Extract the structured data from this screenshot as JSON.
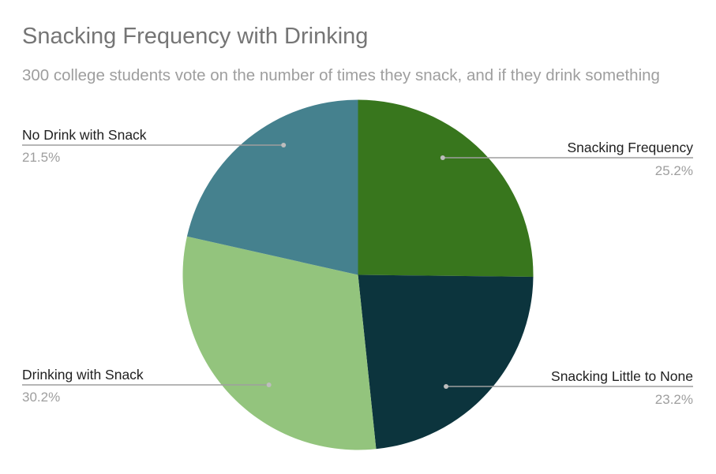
{
  "chart_data": {
    "type": "pie",
    "title": "Snacking Frequency with Drinking",
    "subtitle": "300 college students vote on the number of times they snack, and if they drink something",
    "slices": [
      {
        "label": "Snacking Frequency",
        "value": 25.2,
        "pct_label": "25.2%",
        "color": "#38761d"
      },
      {
        "label": "Snacking Little to None",
        "value": 23.2,
        "pct_label": "23.2%",
        "color": "#0c343d"
      },
      {
        "label": "Drinking with Snack",
        "value": 30.2,
        "pct_label": "30.2%",
        "color": "#93c47d"
      },
      {
        "label": "No Drink with Snack",
        "value": 21.5,
        "pct_label": "21.5%",
        "color": "#45818e"
      }
    ],
    "legend": "labels outside slices",
    "leader_line_color": "#9e9e9e"
  }
}
